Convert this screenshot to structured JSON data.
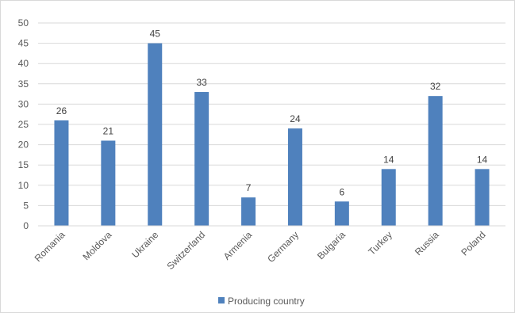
{
  "chart_data": {
    "type": "bar",
    "categories": [
      "Romania",
      "Moldova",
      "Ukraine",
      "Switzerland",
      "Armenia",
      "Germany",
      "Bulgaria",
      "Turkey",
      "Russia",
      "Poland"
    ],
    "series": [
      {
        "name": "Producing country",
        "values": [
          26,
          21,
          45,
          33,
          7,
          24,
          6,
          14,
          32,
          14
        ],
        "color": "#4f81bd"
      }
    ],
    "ylim": [
      0,
      50
    ],
    "yticks": [
      0,
      5,
      10,
      15,
      20,
      25,
      30,
      35,
      40,
      45,
      50
    ],
    "grid": true,
    "data_labels": true,
    "legend_position": "bottom"
  }
}
